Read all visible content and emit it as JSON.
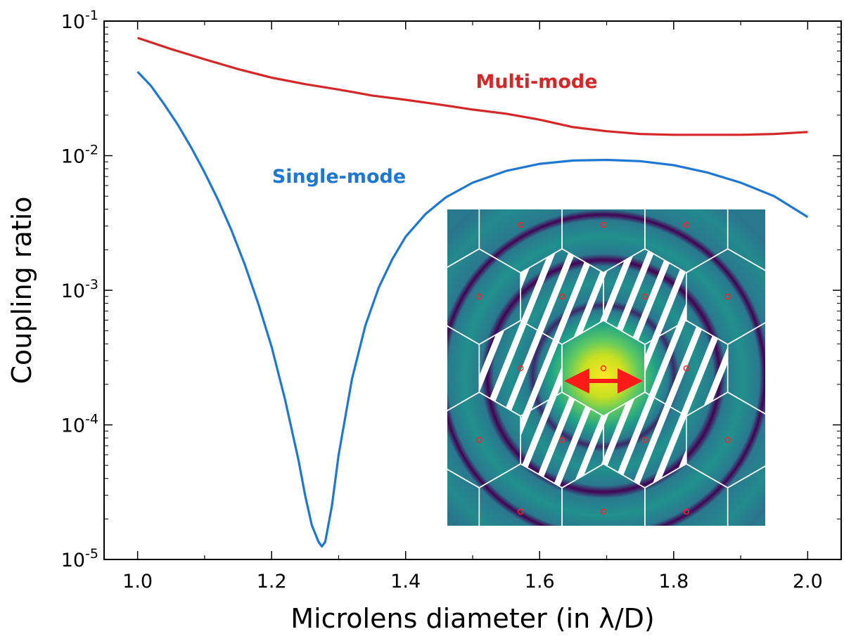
{
  "chart_data": {
    "type": "line",
    "x_label": "Microlens diameter (in λ/D)",
    "y_label": "Coupling ratio",
    "y_scale": "log",
    "xlim": [
      0.95,
      2.05
    ],
    "ylim": [
      1e-05,
      0.1
    ],
    "x_ticks": [
      1.0,
      1.2,
      1.4,
      1.6,
      1.8,
      2.0
    ],
    "x_tick_labels": [
      "1.0",
      "1.2",
      "1.4",
      "1.6",
      "1.8",
      "2.0"
    ],
    "y_ticks": [
      {
        "value": 1e-05,
        "base": "10",
        "exp": "-5"
      },
      {
        "value": 0.0001,
        "base": "10",
        "exp": "-4"
      },
      {
        "value": 0.001,
        "base": "10",
        "exp": "-3"
      },
      {
        "value": 0.01,
        "base": "10",
        "exp": "-2"
      },
      {
        "value": 0.1,
        "base": "10",
        "exp": "-1"
      }
    ],
    "grid": false,
    "legend": "none (series labelled in-plot)",
    "series": [
      {
        "name": "Multi-mode",
        "color": "#d62728",
        "x": [
          1.0,
          1.05,
          1.1,
          1.15,
          1.2,
          1.25,
          1.3,
          1.35,
          1.4,
          1.45,
          1.5,
          1.55,
          1.6,
          1.65,
          1.7,
          1.75,
          1.8,
          1.85,
          1.9,
          1.95,
          2.0
        ],
        "y": [
          0.075,
          0.062,
          0.052,
          0.044,
          0.038,
          0.034,
          0.031,
          0.028,
          0.026,
          0.024,
          0.022,
          0.0205,
          0.0185,
          0.0163,
          0.0152,
          0.0145,
          0.0143,
          0.0143,
          0.0143,
          0.0145,
          0.015
        ]
      },
      {
        "name": "Single-mode",
        "color": "#1f77d4",
        "x": [
          1.0,
          1.02,
          1.04,
          1.06,
          1.08,
          1.1,
          1.12,
          1.14,
          1.16,
          1.18,
          1.2,
          1.22,
          1.24,
          1.25,
          1.26,
          1.27,
          1.275,
          1.28,
          1.29,
          1.3,
          1.32,
          1.34,
          1.36,
          1.38,
          1.4,
          1.43,
          1.46,
          1.5,
          1.55,
          1.6,
          1.65,
          1.7,
          1.75,
          1.8,
          1.85,
          1.9,
          1.95,
          2.0
        ],
        "y": [
          0.042,
          0.033,
          0.024,
          0.017,
          0.0115,
          0.0075,
          0.0047,
          0.0028,
          0.00155,
          0.0008,
          0.00038,
          0.000155,
          5.5e-05,
          3e-05,
          1.8e-05,
          1.35e-05,
          1.25e-05,
          1.35e-05,
          2.5e-05,
          6e-05,
          0.00022,
          0.00055,
          0.00105,
          0.0017,
          0.0025,
          0.0037,
          0.0049,
          0.0063,
          0.0077,
          0.0087,
          0.0092,
          0.0093,
          0.0091,
          0.0085,
          0.0075,
          0.0063,
          0.005,
          0.0035
        ]
      }
    ],
    "annotations": [
      {
        "text": "Multi-mode",
        "color": "#d62728"
      },
      {
        "text": "Single-mode",
        "color": "#1f77d4"
      }
    ],
    "inset": {
      "kind": "image",
      "content": "Airy pattern on a hexagonal microlens grid; first ring of six lenslets hatched; red arrow marks microlens diameter; red circles mark lenslet centres"
    }
  }
}
